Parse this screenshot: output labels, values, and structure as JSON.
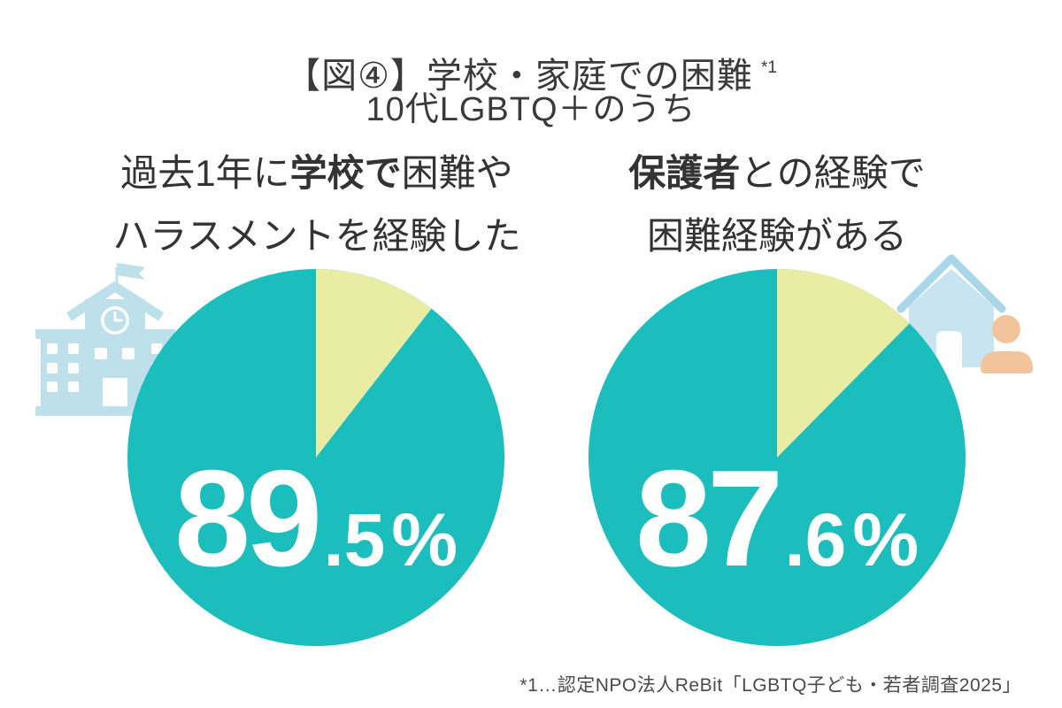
{
  "header": {
    "title": "【図④】学校・家庭での困難",
    "title_note": "*1",
    "subtitle": "10代LGBTQ＋のうち"
  },
  "percent_sign": "%",
  "footnote": "*1…認定NPO法人ReBit「LGBTQ子ども・若者調査2025」",
  "colors": {
    "pie_main_teal": "#1BBEBC",
    "pie_remainder_yellow": "#E9ECA3",
    "school_icon_blue": "#BEE0EB",
    "house_body_blue": "#C8E4F0",
    "house_roof_blue": "#A9D6E9",
    "person_peach": "#F2C49B",
    "text_dark": "#3A3A3A",
    "footnote_gray": "#4A4A4A",
    "value_text_white": "#FFFFFF"
  },
  "chart_data": [
    {
      "type": "pie",
      "title": "過去1年に学校で困難やハラスメントを経験した",
      "heading_lines": [
        [
          {
            "text": "過去1年に",
            "bold": false
          },
          {
            "text": "学校で",
            "bold": true
          },
          {
            "text": "困難や",
            "bold": false
          }
        ],
        [
          {
            "text": "ハラスメントを経験した",
            "bold": false
          }
        ]
      ],
      "value": 89.5,
      "value_display": "89.5%",
      "slices": [
        {
          "name": "main",
          "value": 89.5,
          "color": "#1BBEBC"
        },
        {
          "name": "remainder",
          "value": 10.5,
          "color": "#E9ECA3"
        }
      ],
      "start_angle_deg": 0,
      "direction": "clockwise",
      "icon": "school-icon"
    },
    {
      "type": "pie",
      "title": "保護者との経験で困難経験がある",
      "heading_lines": [
        [
          {
            "text": "保護者",
            "bold": true
          },
          {
            "text": "との経験で",
            "bold": false
          }
        ],
        [
          {
            "text": "困難経験がある",
            "bold": false
          }
        ]
      ],
      "value": 87.6,
      "value_display": "87.6%",
      "slices": [
        {
          "name": "main",
          "value": 87.6,
          "color": "#1BBEBC"
        },
        {
          "name": "remainder",
          "value": 12.4,
          "color": "#E9ECA3"
        }
      ],
      "start_angle_deg": 0,
      "direction": "clockwise",
      "icon": "house-person-icon"
    }
  ]
}
